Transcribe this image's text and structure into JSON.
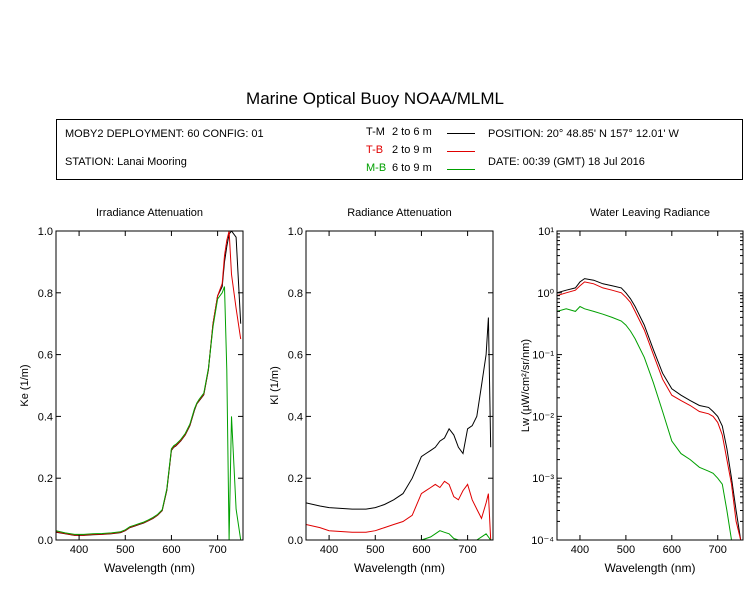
{
  "title": "Marine Optical Buoy NOAA/MLML",
  "info": {
    "deployment": "MOBY2 DEPLOYMENT: 60 CONFIG: 01",
    "station": "STATION: Lanai Mooring",
    "position": "POSITION: 20° 48.85' N   157° 12.01' W",
    "date": "DATE: 00:39 (GMT) 18 Jul 2016"
  },
  "legend": [
    {
      "code": "T-M",
      "range": "2 to 6  m",
      "color": "#000000"
    },
    {
      "code": "T-B",
      "range": "2 to 9  m",
      "color": "#e00000"
    },
    {
      "code": "M-B",
      "range": "6 to 9  m",
      "color": "#00a000"
    }
  ],
  "chart_data": [
    {
      "type": "line",
      "title": "Irradiance Attenuation",
      "xlabel": "Wavelength (nm)",
      "ylabel": "Ke  (1/m)",
      "xlim": [
        350,
        755
      ],
      "ylim": [
        0,
        1
      ],
      "xticks": [
        400,
        500,
        600,
        700
      ],
      "yticks": [
        0.0,
        0.2,
        0.4,
        0.6,
        0.8,
        1.0
      ],
      "ytick_labels": [
        "0.0",
        "0.2",
        "0.4",
        "0.6",
        "0.8",
        "1.0"
      ],
      "series": [
        {
          "name": "T-M",
          "color": "#000000",
          "x": [
            350,
            370,
            390,
            410,
            430,
            450,
            470,
            490,
            500,
            510,
            520,
            530,
            540,
            550,
            560,
            570,
            580,
            590,
            600,
            605,
            610,
            620,
            630,
            640,
            650,
            655,
            660,
            670,
            680,
            690,
            700,
            710,
            715,
            720,
            725,
            730,
            740,
            750
          ],
          "y": [
            0.025,
            0.02,
            0.015,
            0.015,
            0.017,
            0.018,
            0.02,
            0.024,
            0.03,
            0.04,
            0.045,
            0.05,
            0.055,
            0.062,
            0.07,
            0.08,
            0.095,
            0.16,
            0.29,
            0.3,
            0.305,
            0.32,
            0.34,
            0.37,
            0.42,
            0.44,
            0.45,
            0.47,
            0.55,
            0.7,
            0.79,
            0.82,
            0.9,
            0.95,
            0.99,
            1.0,
            0.98,
            0.7
          ]
        },
        {
          "name": "T-B",
          "color": "#e00000",
          "x": [
            350,
            370,
            390,
            410,
            430,
            450,
            470,
            490,
            500,
            510,
            520,
            530,
            540,
            550,
            560,
            570,
            580,
            590,
            600,
            605,
            610,
            620,
            630,
            640,
            650,
            655,
            660,
            670,
            680,
            690,
            700,
            710,
            715,
            720,
            725,
            730,
            740,
            750
          ],
          "y": [
            0.027,
            0.021,
            0.016,
            0.016,
            0.018,
            0.019,
            0.021,
            0.025,
            0.031,
            0.041,
            0.046,
            0.051,
            0.056,
            0.063,
            0.071,
            0.081,
            0.096,
            0.162,
            0.292,
            0.302,
            0.306,
            0.322,
            0.342,
            0.372,
            0.423,
            0.441,
            0.452,
            0.472,
            0.552,
            0.7,
            0.79,
            0.83,
            0.92,
            0.97,
            1.0,
            0.86,
            0.75,
            0.65
          ]
        },
        {
          "name": "M-B",
          "color": "#00a000",
          "x": [
            350,
            370,
            390,
            410,
            430,
            450,
            470,
            490,
            500,
            510,
            520,
            530,
            540,
            550,
            560,
            570,
            580,
            590,
            600,
            605,
            610,
            620,
            630,
            640,
            650,
            655,
            660,
            670,
            680,
            690,
            700,
            710,
            715,
            720,
            725,
            730,
            740,
            750
          ],
          "y": [
            0.03,
            0.023,
            0.018,
            0.018,
            0.02,
            0.021,
            0.023,
            0.027,
            0.033,
            0.043,
            0.048,
            0.053,
            0.058,
            0.065,
            0.073,
            0.083,
            0.098,
            0.165,
            0.295,
            0.305,
            0.31,
            0.325,
            0.345,
            0.375,
            0.425,
            0.443,
            0.455,
            0.475,
            0.555,
            0.69,
            0.78,
            0.8,
            0.82,
            0.55,
            0.0,
            0.4,
            0.1,
            0.0
          ]
        }
      ]
    },
    {
      "type": "line",
      "title": "Radiance Attenuation",
      "xlabel": "Wavelength (nm)",
      "ylabel": "Kl  (1/m)",
      "xlim": [
        350,
        755
      ],
      "ylim": [
        0,
        1
      ],
      "xticks": [
        400,
        500,
        600,
        700
      ],
      "yticks": [
        0.0,
        0.2,
        0.4,
        0.6,
        0.8,
        1.0
      ],
      "ytick_labels": [
        "0.0",
        "0.2",
        "0.4",
        "0.6",
        "0.8",
        "1.0"
      ],
      "series": [
        {
          "name": "T-M",
          "color": "#000000",
          "x": [
            350,
            380,
            400,
            450,
            480,
            500,
            520,
            540,
            560,
            580,
            600,
            610,
            620,
            630,
            640,
            650,
            660,
            670,
            680,
            690,
            700,
            710,
            720,
            730,
            740,
            745,
            750
          ],
          "y": [
            0.12,
            0.11,
            0.105,
            0.1,
            0.1,
            0.105,
            0.115,
            0.13,
            0.15,
            0.2,
            0.27,
            0.28,
            0.29,
            0.3,
            0.32,
            0.33,
            0.36,
            0.34,
            0.3,
            0.28,
            0.36,
            0.37,
            0.4,
            0.5,
            0.6,
            0.72,
            0.3
          ]
        },
        {
          "name": "T-B",
          "color": "#e00000",
          "x": [
            350,
            380,
            400,
            450,
            480,
            500,
            520,
            540,
            560,
            580,
            600,
            610,
            620,
            630,
            640,
            650,
            660,
            670,
            680,
            690,
            700,
            710,
            720,
            730,
            740,
            745,
            750
          ],
          "y": [
            0.05,
            0.04,
            0.03,
            0.025,
            0.025,
            0.03,
            0.04,
            0.05,
            0.06,
            0.08,
            0.15,
            0.16,
            0.17,
            0.18,
            0.17,
            0.19,
            0.18,
            0.14,
            0.13,
            0.16,
            0.18,
            0.13,
            0.1,
            0.07,
            0.12,
            0.15,
            0.0
          ]
        },
        {
          "name": "M-B",
          "color": "#00a000",
          "x": [
            600,
            610,
            620,
            630,
            640,
            650,
            660,
            670,
            680,
            700,
            720,
            730,
            740,
            750
          ],
          "y": [
            0.0,
            0.005,
            0.01,
            0.02,
            0.03,
            0.025,
            0.02,
            0.005,
            0.0,
            0.0,
            0.0,
            0.01,
            0.02,
            0.0
          ]
        }
      ]
    },
    {
      "type": "line",
      "title": "Water Leaving Radiance",
      "xlabel": "Wavelength (nm)",
      "ylabel": "Lw  (µW/cm²/sr/nm)",
      "xlim": [
        350,
        755
      ],
      "ylim": [
        0.0001,
        10
      ],
      "log_y": true,
      "xticks": [
        400,
        500,
        600,
        700
      ],
      "yticks": [
        0.0001,
        0.001,
        0.01,
        0.1,
        1,
        10
      ],
      "ytick_labels": [
        "10⁻⁴",
        "10⁻³",
        "10⁻²",
        "10⁻¹",
        "10⁰",
        "10¹"
      ],
      "series": [
        {
          "name": "T-M",
          "color": "#000000",
          "x": [
            350,
            370,
            390,
            400,
            410,
            430,
            450,
            470,
            490,
            500,
            510,
            520,
            540,
            560,
            580,
            600,
            620,
            640,
            660,
            680,
            690,
            700,
            710,
            720,
            730,
            740,
            750
          ],
          "y": [
            1.0,
            1.1,
            1.2,
            1.5,
            1.7,
            1.6,
            1.4,
            1.3,
            1.2,
            1.0,
            0.8,
            0.6,
            0.3,
            0.12,
            0.05,
            0.028,
            0.022,
            0.018,
            0.015,
            0.014,
            0.012,
            0.01,
            0.007,
            0.003,
            0.001,
            0.0003,
            0.0001
          ]
        },
        {
          "name": "T-B",
          "color": "#e00000",
          "x": [
            350,
            370,
            390,
            400,
            410,
            430,
            450,
            470,
            490,
            500,
            510,
            520,
            540,
            560,
            580,
            600,
            620,
            640,
            660,
            680,
            690,
            700,
            710,
            720,
            730,
            740,
            750
          ],
          "y": [
            0.9,
            1.0,
            1.1,
            1.3,
            1.5,
            1.4,
            1.2,
            1.1,
            1.0,
            0.85,
            0.7,
            0.5,
            0.25,
            0.1,
            0.04,
            0.022,
            0.018,
            0.015,
            0.012,
            0.011,
            0.01,
            0.008,
            0.005,
            0.002,
            0.0008,
            0.0002,
            0.0001
          ]
        },
        {
          "name": "M-B",
          "color": "#00a000",
          "x": [
            350,
            370,
            390,
            400,
            410,
            430,
            450,
            470,
            490,
            500,
            510,
            520,
            540,
            560,
            580,
            600,
            620,
            640,
            660,
            680,
            690,
            700,
            710,
            720,
            730
          ],
          "y": [
            0.5,
            0.55,
            0.5,
            0.6,
            0.55,
            0.5,
            0.45,
            0.4,
            0.35,
            0.3,
            0.24,
            0.18,
            0.09,
            0.035,
            0.012,
            0.004,
            0.0025,
            0.002,
            0.0015,
            0.0013,
            0.0012,
            0.001,
            0.0008,
            0.0003,
            0.0001
          ]
        }
      ]
    }
  ]
}
